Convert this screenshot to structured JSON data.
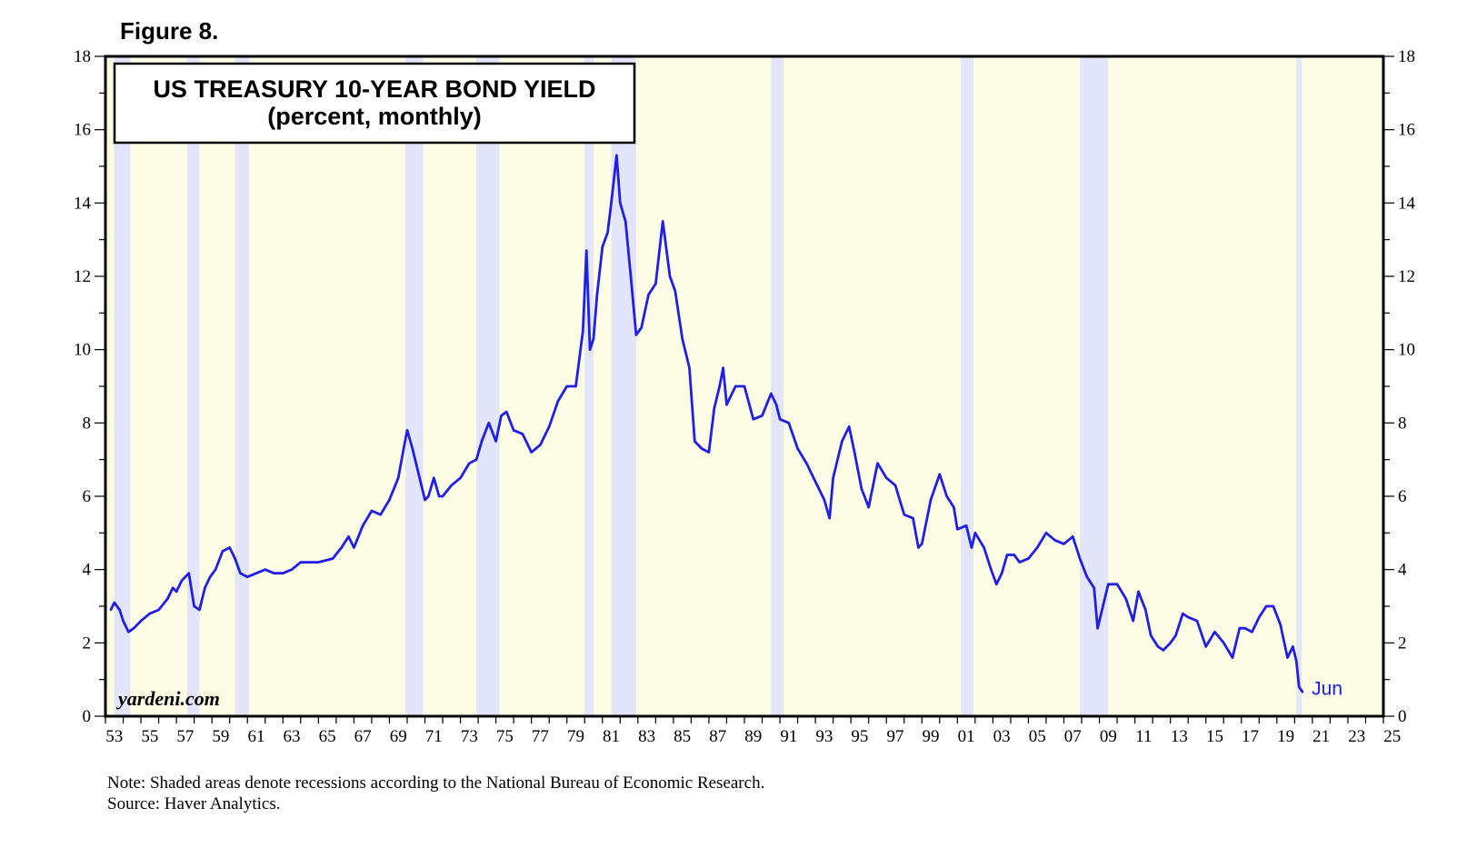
{
  "figure_label": "Figure 8.",
  "watermark": "yardeni.com",
  "notes": {
    "note": "Note: Shaded areas denote recessions according to the National Bureau of Economic Research.",
    "source": "Source: Haver Analytics."
  },
  "colors": {
    "plot_background": "#fdfce4",
    "recession_band": "#e3e5fb",
    "line": "#1f1fe6",
    "end_label": "#1a1aff"
  },
  "chart_data": {
    "type": "line",
    "title": "US TREASURY 10-YEAR BOND YIELD",
    "subtitle": "(percent, monthly)",
    "xlabel": "",
    "ylabel": "",
    "xlim": [
      1953.0,
      2025.0
    ],
    "ylim": [
      0,
      18
    ],
    "y_ticks": [
      0,
      2,
      4,
      6,
      8,
      10,
      12,
      14,
      16,
      18
    ],
    "y_minor_step": 1,
    "x_tick_labels": [
      "53",
      "55",
      "57",
      "59",
      "61",
      "63",
      "65",
      "67",
      "69",
      "71",
      "73",
      "75",
      "77",
      "79",
      "81",
      "83",
      "85",
      "87",
      "89",
      "91",
      "93",
      "95",
      "97",
      "99",
      "01",
      "03",
      "05",
      "07",
      "09",
      "11",
      "13",
      "15",
      "17",
      "19",
      "21",
      "23",
      "25"
    ],
    "x_tick_start_year": 1953,
    "x_tick_step_years": 2,
    "grid": false,
    "end_annotation": "Jun",
    "recessions": [
      [
        1953.5,
        1954.4
      ],
      [
        1957.6,
        1958.3
      ],
      [
        1960.3,
        1961.1
      ],
      [
        1969.9,
        1970.9
      ],
      [
        1973.9,
        1975.2
      ],
      [
        1980.0,
        1980.5
      ],
      [
        1981.5,
        1982.9
      ],
      [
        1990.5,
        1991.2
      ],
      [
        2001.2,
        2001.9
      ],
      [
        2007.9,
        2009.5
      ],
      [
        2020.1,
        2020.4
      ]
    ],
    "series": [
      {
        "name": "US Treasury 10-Year Bond Yield",
        "x": [
          1953.3,
          1953.5,
          1953.8,
          1954.0,
          1954.3,
          1954.6,
          1955.0,
          1955.5,
          1956.0,
          1956.5,
          1956.8,
          1957.0,
          1957.3,
          1957.7,
          1958.0,
          1958.3,
          1958.6,
          1958.9,
          1959.2,
          1959.6,
          1960.0,
          1960.3,
          1960.6,
          1961.0,
          1961.5,
          1962.0,
          1962.5,
          1963.0,
          1963.5,
          1964.0,
          1965.0,
          1965.8,
          1966.3,
          1966.7,
          1967.0,
          1967.5,
          1968.0,
          1968.5,
          1969.0,
          1969.5,
          1969.8,
          1970.0,
          1970.3,
          1970.6,
          1971.0,
          1971.2,
          1971.5,
          1971.8,
          1972.0,
          1972.5,
          1973.0,
          1973.5,
          1973.9,
          1974.2,
          1974.6,
          1975.0,
          1975.3,
          1975.6,
          1976.0,
          1976.5,
          1977.0,
          1977.5,
          1978.0,
          1978.5,
          1979.0,
          1979.5,
          1979.9,
          1980.1,
          1980.3,
          1980.5,
          1980.7,
          1981.0,
          1981.3,
          1981.5,
          1981.8,
          1982.0,
          1982.3,
          1982.6,
          1982.9,
          1983.2,
          1983.6,
          1984.0,
          1984.4,
          1984.8,
          1985.1,
          1985.5,
          1985.9,
          1986.2,
          1986.6,
          1987.0,
          1987.3,
          1987.6,
          1987.8,
          1988.0,
          1988.5,
          1989.0,
          1989.5,
          1990.0,
          1990.5,
          1990.8,
          1991.0,
          1991.5,
          1992.0,
          1992.5,
          1993.0,
          1993.5,
          1993.8,
          1994.0,
          1994.5,
          1994.9,
          1995.2,
          1995.6,
          1996.0,
          1996.5,
          1997.0,
          1997.5,
          1998.0,
          1998.5,
          1998.8,
          1999.0,
          1999.5,
          2000.0,
          2000.4,
          2000.8,
          2001.0,
          2001.5,
          2001.8,
          2002.0,
          2002.5,
          2002.9,
          2003.2,
          2003.5,
          2003.8,
          2004.2,
          2004.5,
          2005.0,
          2005.5,
          2006.0,
          2006.5,
          2007.0,
          2007.5,
          2007.9,
          2008.3,
          2008.7,
          2008.9,
          2009.1,
          2009.5,
          2010.0,
          2010.5,
          2010.9,
          2011.2,
          2011.6,
          2011.9,
          2012.3,
          2012.6,
          2013.0,
          2013.3,
          2013.7,
          2014.0,
          2014.5,
          2015.0,
          2015.5,
          2016.0,
          2016.5,
          2016.9,
          2017.2,
          2017.6,
          2018.0,
          2018.4,
          2018.8,
          2019.2,
          2019.6,
          2019.9,
          2020.1,
          2020.25,
          2020.45
        ],
        "values": [
          2.9,
          3.1,
          2.9,
          2.6,
          2.3,
          2.4,
          2.6,
          2.8,
          2.9,
          3.2,
          3.5,
          3.4,
          3.7,
          3.9,
          3.0,
          2.9,
          3.5,
          3.8,
          4.0,
          4.5,
          4.6,
          4.3,
          3.9,
          3.8,
          3.9,
          4.0,
          3.9,
          3.9,
          4.0,
          4.2,
          4.2,
          4.3,
          4.6,
          4.9,
          4.6,
          5.2,
          5.6,
          5.5,
          5.9,
          6.5,
          7.3,
          7.8,
          7.3,
          6.7,
          5.9,
          6.0,
          6.5,
          6.0,
          6.0,
          6.3,
          6.5,
          6.9,
          7.0,
          7.5,
          8.0,
          7.5,
          8.2,
          8.3,
          7.8,
          7.7,
          7.2,
          7.4,
          7.9,
          8.6,
          9.0,
          9.0,
          10.5,
          12.7,
          10.0,
          10.3,
          11.5,
          12.8,
          13.2,
          14.0,
          15.3,
          14.0,
          13.5,
          12.0,
          10.4,
          10.6,
          11.5,
          11.8,
          13.5,
          12.0,
          11.6,
          10.3,
          9.5,
          7.5,
          7.3,
          7.2,
          8.4,
          9.0,
          9.5,
          8.5,
          9.0,
          9.0,
          8.1,
          8.2,
          8.8,
          8.5,
          8.1,
          8.0,
          7.3,
          6.9,
          6.4,
          5.9,
          5.4,
          6.5,
          7.5,
          7.9,
          7.2,
          6.2,
          5.7,
          6.9,
          6.5,
          6.3,
          5.5,
          5.4,
          4.6,
          4.7,
          5.9,
          6.6,
          6.0,
          5.7,
          5.1,
          5.2,
          4.6,
          5.0,
          4.6,
          4.0,
          3.6,
          3.9,
          4.4,
          4.4,
          4.2,
          4.3,
          4.6,
          5.0,
          4.8,
          4.7,
          4.9,
          4.3,
          3.8,
          3.5,
          2.4,
          2.8,
          3.6,
          3.6,
          3.2,
          2.6,
          3.4,
          2.9,
          2.2,
          1.9,
          1.8,
          2.0,
          2.2,
          2.8,
          2.7,
          2.6,
          1.9,
          2.3,
          2.0,
          1.6,
          2.4,
          2.4,
          2.3,
          2.7,
          3.0,
          3.0,
          2.5,
          1.6,
          1.9,
          1.5,
          0.8,
          0.66
        ]
      }
    ]
  }
}
